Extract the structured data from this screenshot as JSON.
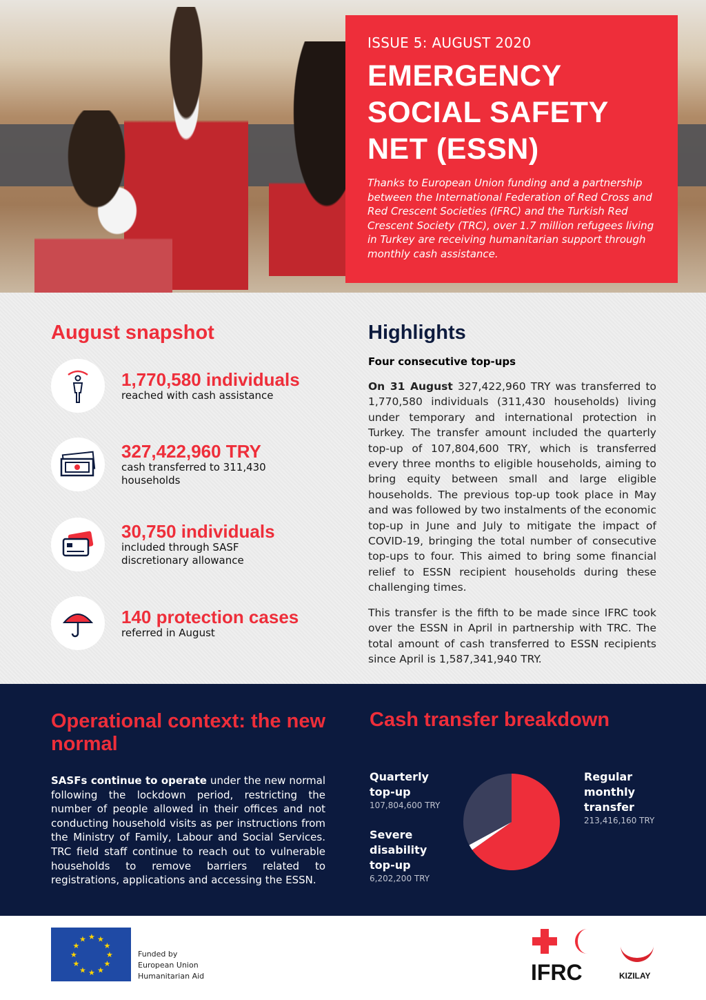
{
  "hero": {
    "issue": "ISSUE 5: AUGUST 2020",
    "title_lines": [
      "EMERGENCY",
      "SOCIAL SAFETY",
      "NET (ESSN)"
    ],
    "subtitle": "Thanks to European Union funding and a partnership between the International Federation of Red Cross and Red Crescent Societies (IFRC) and the Turkish Red Crescent Society (TRC), over 1.7 million refugees living in Turkey are receiving humanitarian support through monthly cash assistance."
  },
  "snapshot": {
    "title": "August snapshot",
    "stats": [
      {
        "value": "1,770,580 individuals",
        "desc": "reached with cash assistance",
        "icon": "person-icon"
      },
      {
        "value": "327,422,960 TRY",
        "desc": "cash transferred to 311,430 households",
        "icon": "banknote-icon"
      },
      {
        "value": "30,750 individuals",
        "desc": "included through SASF discretionary allowance",
        "icon": "cards-icon"
      },
      {
        "value": "140 protection cases",
        "desc": "referred in August",
        "icon": "umbrella-icon"
      }
    ]
  },
  "highlights": {
    "title": "Highlights",
    "subtitle": "Four consecutive top-ups",
    "p1_lead": "On 31 August",
    "p1": " 327,422,960 TRY was transferred to 1,770,580 individuals (311,430 households) living under temporary and international protection in Turkey. The transfer amount included the quarterly top-up of 107,804,600 TRY, which is transferred every three months to eligible households, aiming to bring equity between small and large eligible households. The previous top-up took place in May and was followed by two instalments of the economic top-up in June and July to mitigate the impact of COVID-19, bringing the total number of consecutive top-ups to four. This aimed to bring some financial relief to ESSN recipient households during these challenging times.",
    "p2": "This transfer is the fifth to be made since IFRC took over the ESSN in April in partnership with TRC. The total amount of cash transferred to ESSN recipients since April is 1,587,341,940 TRY."
  },
  "operational": {
    "title": "Operational context: the new normal",
    "lead": "SASFs continue to operate",
    "body": " under the new normal following the lockdown period, restricting the number of people allowed in their offices and not conducting household visits as per instructions from the Ministry of Family, Labour and Social Services. TRC field staff continue to reach out to vulnerable households to remove barriers related to registrations, applications and accessing the ESSN."
  },
  "chart_data": {
    "type": "pie",
    "title": "Cash transfer breakdown",
    "slices": [
      {
        "label": "Regular monthly transfer",
        "value": 213416160,
        "value_label": "213,416,160 TRY",
        "color": "#ee2e3a"
      },
      {
        "label": "Severe disability top-up",
        "value": 6202200,
        "value_label": "6,202,200 TRY",
        "color": "#ffffff"
      },
      {
        "label": "Quarterly top-up",
        "value": 107804600,
        "value_label": "107,804,600 TRY",
        "color": "#3a3f5c"
      }
    ]
  },
  "footer": {
    "eu_text": [
      "Funded by",
      "European Union",
      "Humanitarian Aid"
    ],
    "ifrc_logo": "IFRC",
    "kizilay_logo": "KIZILAY"
  },
  "colors": {
    "red": "#ee2e3a",
    "navy": "#0c1a3e"
  }
}
